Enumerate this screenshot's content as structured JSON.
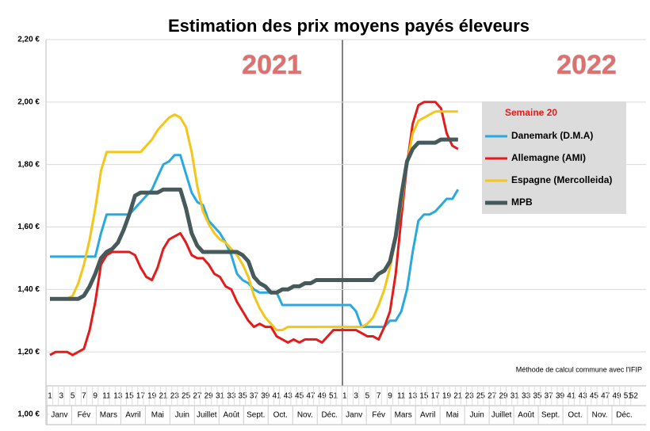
{
  "chart_data": {
    "type": "line",
    "title": "Estimation des prix moyens payés éleveurs",
    "annotations": [
      "2021",
      "2022"
    ],
    "legend_title": "Semaine 20",
    "note": "Méthode de calcul commune avec l'IFIP",
    "month_labels": [
      "Janv",
      "Fév",
      "Mars",
      "Avril",
      "Mai",
      "Juin",
      "Juillet",
      "Août",
      "Sept.",
      "Oct.",
      "Nov.",
      "Déc.",
      "Janv",
      "Fév",
      "Mars",
      "Avril",
      "Mai",
      "Juin",
      "Juillet",
      "Août",
      "Sept.",
      "Oct.",
      "Nov.",
      "Déc."
    ],
    "categories": [
      "1",
      null,
      "3",
      null,
      "5",
      null,
      "7",
      null,
      "9",
      null,
      "11",
      null,
      "13",
      null,
      "15",
      null,
      "17",
      null,
      "19",
      null,
      "21",
      null,
      "23",
      null,
      "25",
      null,
      "27",
      null,
      "29",
      null,
      "31",
      null,
      "33",
      null,
      "35",
      null,
      "37",
      null,
      "39",
      null,
      "41",
      null,
      "43",
      null,
      "45",
      null,
      "47",
      null,
      "49",
      null,
      "51",
      null,
      "1",
      null,
      "3",
      null,
      "5",
      null,
      "7",
      null,
      "9",
      null,
      "11",
      null,
      "13",
      null,
      "15",
      null,
      "17",
      null,
      "19",
      null,
      "21",
      null,
      "23",
      null,
      "25",
      null,
      "27",
      null,
      "29",
      null,
      "31",
      null,
      "33",
      null,
      "35",
      null,
      "37",
      null,
      "39",
      null,
      "41",
      null,
      "43",
      null,
      "45",
      null,
      "47",
      null,
      "49",
      null,
      "51",
      "52"
    ],
    "series": [
      {
        "name": "Danemark (D.M.A)",
        "color": "#29a9e0",
        "values": [
          1.505,
          1.505,
          1.505,
          1.505,
          1.505,
          1.505,
          1.505,
          1.505,
          1.505,
          1.58,
          1.64,
          1.64,
          1.64,
          1.64,
          1.64,
          1.66,
          1.68,
          1.7,
          1.72,
          1.76,
          1.8,
          1.81,
          1.83,
          1.83,
          1.77,
          1.71,
          1.68,
          1.67,
          1.62,
          1.6,
          1.58,
          1.55,
          1.51,
          1.45,
          1.43,
          1.42,
          1.4,
          1.39,
          1.39,
          1.39,
          1.39,
          1.35,
          1.35,
          1.35,
          1.35,
          1.35,
          1.35,
          1.35,
          1.35,
          1.35,
          1.35,
          1.35,
          1.35,
          1.35,
          1.33,
          1.28,
          1.28,
          1.28,
          1.28,
          1.28,
          1.3,
          1.3,
          1.33,
          1.4,
          1.52,
          1.62,
          1.64,
          1.64,
          1.65,
          1.67,
          1.69,
          1.69,
          1.72,
          null,
          null,
          null,
          null,
          null,
          null,
          null,
          null,
          null,
          null,
          null,
          null,
          null,
          null,
          null,
          null,
          null,
          null,
          null,
          null,
          null,
          null,
          null,
          null,
          null,
          null,
          null,
          null,
          null,
          null,
          null
        ]
      },
      {
        "name": "Allemagne (AMI)",
        "color": "#e31b1b",
        "values": [
          1.19,
          1.2,
          1.2,
          1.2,
          1.19,
          1.2,
          1.21,
          1.27,
          1.36,
          1.48,
          1.51,
          1.52,
          1.52,
          1.52,
          1.52,
          1.51,
          1.47,
          1.44,
          1.43,
          1.47,
          1.53,
          1.56,
          1.57,
          1.58,
          1.55,
          1.51,
          1.5,
          1.5,
          1.48,
          1.45,
          1.44,
          1.41,
          1.4,
          1.36,
          1.33,
          1.3,
          1.28,
          1.29,
          1.28,
          1.28,
          1.25,
          1.24,
          1.23,
          1.24,
          1.23,
          1.24,
          1.24,
          1.24,
          1.23,
          1.25,
          1.27,
          1.27,
          1.27,
          1.27,
          1.27,
          1.26,
          1.25,
          1.25,
          1.24,
          1.28,
          1.33,
          1.45,
          1.63,
          1.8,
          1.93,
          1.99,
          2.0,
          2.0,
          2.0,
          1.98,
          1.9,
          1.86,
          1.85,
          null,
          null,
          null,
          null,
          null,
          null,
          null,
          null,
          null,
          null,
          null,
          null,
          null,
          null,
          null,
          null,
          null,
          null,
          null,
          null,
          null,
          null,
          null,
          null,
          null,
          null,
          null,
          null,
          null,
          null,
          null
        ]
      },
      {
        "name": "Espagne (Mercolleida)",
        "color": "#f5c518",
        "values": [
          1.37,
          1.37,
          1.37,
          1.37,
          1.38,
          1.42,
          1.48,
          1.56,
          1.66,
          1.78,
          1.84,
          1.84,
          1.84,
          1.84,
          1.84,
          1.84,
          1.84,
          1.86,
          1.88,
          1.91,
          1.93,
          1.95,
          1.96,
          1.95,
          1.92,
          1.84,
          1.73,
          1.65,
          1.61,
          1.58,
          1.56,
          1.55,
          1.53,
          1.51,
          1.48,
          1.44,
          1.38,
          1.34,
          1.31,
          1.29,
          1.27,
          1.27,
          1.28,
          1.28,
          1.28,
          1.28,
          1.28,
          1.28,
          1.28,
          1.28,
          1.28,
          1.28,
          1.28,
          1.28,
          1.28,
          1.28,
          1.29,
          1.31,
          1.35,
          1.4,
          1.47,
          1.56,
          1.67,
          1.8,
          1.9,
          1.94,
          1.95,
          1.96,
          1.97,
          1.97,
          1.97,
          1.97,
          1.97,
          null,
          null,
          null,
          null,
          null,
          null,
          null,
          null,
          null,
          null,
          null,
          null,
          null,
          null,
          null,
          null,
          null,
          null,
          null,
          null,
          null,
          null,
          null,
          null,
          null,
          null,
          null,
          null,
          null,
          null,
          null
        ]
      },
      {
        "name": "MPB",
        "color": "#465a5c",
        "values": [
          1.37,
          1.37,
          1.37,
          1.37,
          1.37,
          1.37,
          1.38,
          1.41,
          1.45,
          1.5,
          1.52,
          1.53,
          1.55,
          1.59,
          1.64,
          1.7,
          1.71,
          1.71,
          1.71,
          1.71,
          1.72,
          1.72,
          1.72,
          1.72,
          1.66,
          1.58,
          1.54,
          1.52,
          1.52,
          1.52,
          1.52,
          1.52,
          1.52,
          1.52,
          1.51,
          1.49,
          1.44,
          1.42,
          1.41,
          1.39,
          1.39,
          1.4,
          1.4,
          1.41,
          1.41,
          1.42,
          1.42,
          1.43,
          1.43,
          1.43,
          1.43,
          1.43,
          1.43,
          1.43,
          1.43,
          1.43,
          1.43,
          1.43,
          1.45,
          1.46,
          1.49,
          1.57,
          1.7,
          1.81,
          1.85,
          1.87,
          1.87,
          1.87,
          1.87,
          1.88,
          1.88,
          1.88,
          1.88,
          null,
          null,
          null,
          null,
          null,
          null,
          null,
          null,
          null,
          null,
          null,
          null,
          null,
          null,
          null,
          null,
          null,
          null,
          null,
          null,
          null,
          null,
          null,
          null,
          null,
          null,
          null,
          null,
          null,
          null,
          null
        ]
      }
    ],
    "ylim": [
      1.0,
      2.2
    ],
    "yticks": [
      {
        "value": 1.0,
        "label": "1,00 €"
      },
      {
        "value": 1.2,
        "label": "1,20 €"
      },
      {
        "value": 1.4,
        "label": "1,40 €"
      },
      {
        "value": 1.6,
        "label": "1,60 €"
      },
      {
        "value": 1.8,
        "label": "1,80 €"
      },
      {
        "value": 2.0,
        "label": "2,00 €"
      },
      {
        "value": 2.2,
        "label": "2,20 €"
      }
    ],
    "grid": true
  }
}
